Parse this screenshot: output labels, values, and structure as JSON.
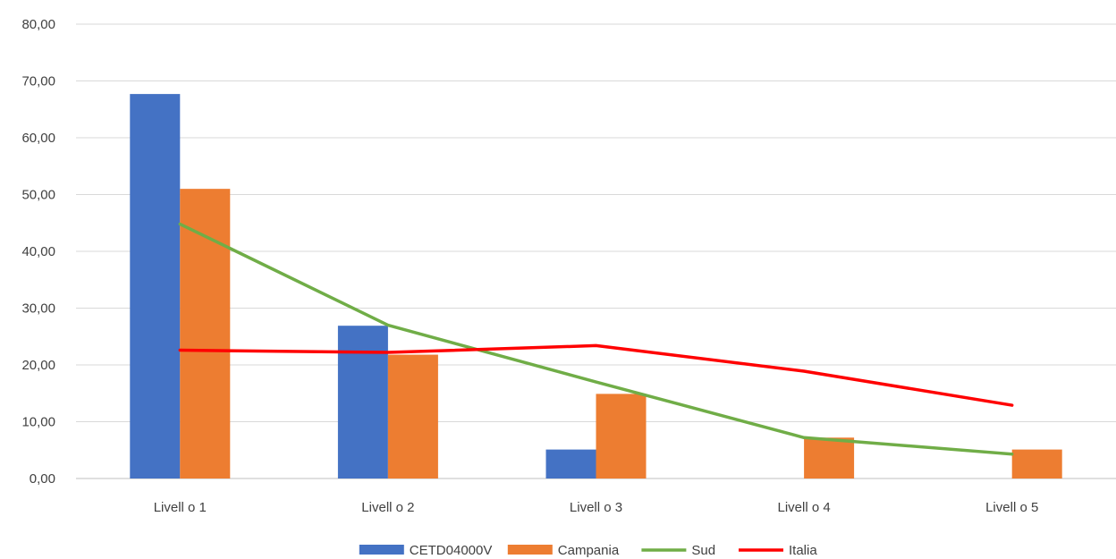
{
  "chart_data": {
    "type": "bar",
    "categories": [
      "Livell o 1",
      "Livell o 2",
      "Livell o 3",
      "Livell o 4",
      "Livell o 5"
    ],
    "ylim": [
      0,
      80
    ],
    "yticks": [
      "0,00",
      "10,00",
      "20,00",
      "30,00",
      "40,00",
      "50,00",
      "60,00",
      "70,00",
      "80,00"
    ],
    "grid": true,
    "legend_position": "bottom",
    "series": [
      {
        "name": "CETD04000V",
        "kind": "bar",
        "color": "#4472C4",
        "values": [
          67.7,
          26.9,
          5.1,
          0,
          0
        ]
      },
      {
        "name": "Campania",
        "kind": "bar",
        "color": "#ED7D31",
        "values": [
          51.0,
          21.8,
          14.9,
          7.2,
          5.1
        ]
      },
      {
        "name": "Sud",
        "kind": "line",
        "color": "#70AD47",
        "values": [
          44.8,
          27.0,
          17.0,
          7.2,
          4.3
        ]
      },
      {
        "name": "Italia",
        "kind": "line",
        "color": "#FF0000",
        "values": [
          22.6,
          22.2,
          23.4,
          18.9,
          12.9
        ]
      }
    ]
  }
}
